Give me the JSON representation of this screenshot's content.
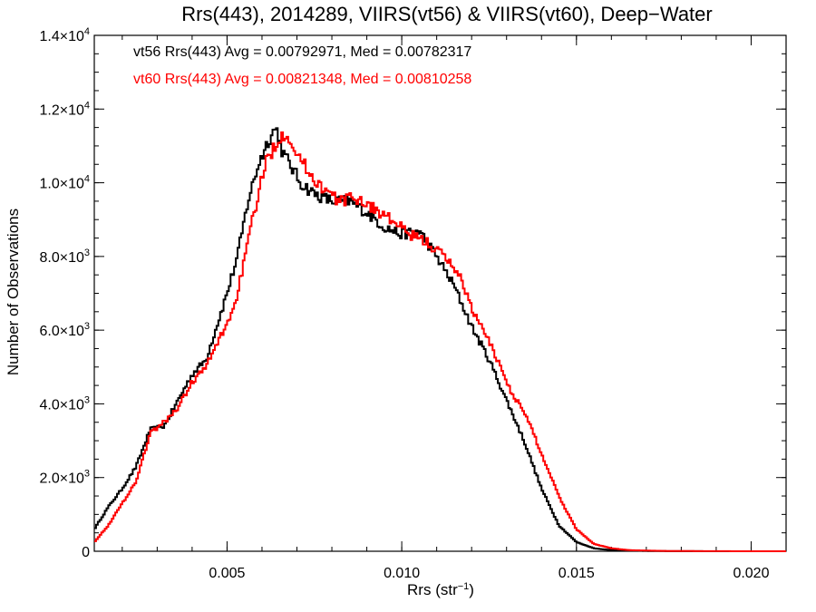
{
  "chart_data": {
    "type": "line",
    "title": "Rrs(443), 2014289, VIIRS(vt56) & VIIRS(vt60), Deep−Water",
    "xlabel": "Rrs (str",
    "xlabel_exponent": "−1",
    "xlabel_suffix": ")",
    "ylabel": "Number of Observations",
    "xlim": [
      0.0012,
      0.021
    ],
    "ylim": [
      0,
      14000
    ],
    "grid": false,
    "legend_position": "top-left",
    "x_ticks": [
      {
        "value": 0.005,
        "label": "0.005"
      },
      {
        "value": 0.01,
        "label": "0.010"
      },
      {
        "value": 0.015,
        "label": "0.015"
      },
      {
        "value": 0.02,
        "label": "0.020"
      }
    ],
    "y_ticks": [
      {
        "value": 0,
        "mantissa": "0",
        "exponent": ""
      },
      {
        "value": 2000,
        "mantissa": "2.0×10",
        "exponent": "3"
      },
      {
        "value": 4000,
        "mantissa": "4.0×10",
        "exponent": "3"
      },
      {
        "value": 6000,
        "mantissa": "6.0×10",
        "exponent": "3"
      },
      {
        "value": 8000,
        "mantissa": "8.0×10",
        "exponent": "3"
      },
      {
        "value": 10000,
        "mantissa": "1.0×10",
        "exponent": "4"
      },
      {
        "value": 12000,
        "mantissa": "1.2×10",
        "exponent": "4"
      },
      {
        "value": 14000,
        "mantissa": "1.4×10",
        "exponent": "4"
      }
    ],
    "annotations": [
      {
        "text": "vt56 Rrs(443) Avg = 0.00792971, Med = 0.00782317",
        "color": "#000000"
      },
      {
        "text": "vt60 Rrs(443) Avg = 0.00821348, Med = 0.00810258",
        "color": "#ff0000"
      }
    ],
    "series": [
      {
        "color": "#000000",
        "points": [
          [
            0.0012,
            600
          ],
          [
            0.0016,
            1200
          ],
          [
            0.002,
            1700
          ],
          [
            0.0024,
            2300
          ],
          [
            0.0028,
            3300
          ],
          [
            0.0032,
            3400
          ],
          [
            0.0036,
            4100
          ],
          [
            0.004,
            4800
          ],
          [
            0.0044,
            5200
          ],
          [
            0.0048,
            6400
          ],
          [
            0.005,
            7000
          ],
          [
            0.0053,
            8000
          ],
          [
            0.0056,
            9500
          ],
          [
            0.0059,
            10500
          ],
          [
            0.0062,
            11200
          ],
          [
            0.0064,
            11500
          ],
          [
            0.0066,
            10800
          ],
          [
            0.0068,
            10500
          ],
          [
            0.0071,
            10000
          ],
          [
            0.0075,
            9700
          ],
          [
            0.008,
            9500
          ],
          [
            0.0085,
            9500
          ],
          [
            0.009,
            9200
          ],
          [
            0.0095,
            8800
          ],
          [
            0.01,
            8600
          ],
          [
            0.0105,
            8700
          ],
          [
            0.011,
            8000
          ],
          [
            0.0115,
            7200
          ],
          [
            0.012,
            6100
          ],
          [
            0.0125,
            5200
          ],
          [
            0.013,
            4100
          ],
          [
            0.0135,
            3000
          ],
          [
            0.014,
            1700
          ],
          [
            0.0145,
            700
          ],
          [
            0.015,
            250
          ],
          [
            0.0155,
            80
          ],
          [
            0.016,
            30
          ],
          [
            0.017,
            8
          ],
          [
            0.018,
            2
          ],
          [
            0.021,
            0
          ]
        ]
      },
      {
        "color": "#ff0000",
        "points": [
          [
            0.0012,
            250
          ],
          [
            0.0016,
            700
          ],
          [
            0.002,
            1300
          ],
          [
            0.0024,
            1900
          ],
          [
            0.0028,
            3200
          ],
          [
            0.0032,
            3500
          ],
          [
            0.0036,
            3900
          ],
          [
            0.004,
            4600
          ],
          [
            0.0044,
            5000
          ],
          [
            0.0048,
            5800
          ],
          [
            0.0052,
            6600
          ],
          [
            0.0055,
            7900
          ],
          [
            0.0058,
            9300
          ],
          [
            0.0061,
            10500
          ],
          [
            0.0064,
            11100
          ],
          [
            0.0067,
            11400
          ],
          [
            0.007,
            10800
          ],
          [
            0.0074,
            10200
          ],
          [
            0.0078,
            9800
          ],
          [
            0.0082,
            9500
          ],
          [
            0.0087,
            9600
          ],
          [
            0.0092,
            9300
          ],
          [
            0.0097,
            9000
          ],
          [
            0.0102,
            8600
          ],
          [
            0.0107,
            8400
          ],
          [
            0.0111,
            8100
          ],
          [
            0.0116,
            7600
          ],
          [
            0.0121,
            6400
          ],
          [
            0.0126,
            5500
          ],
          [
            0.0131,
            4400
          ],
          [
            0.0136,
            3600
          ],
          [
            0.0141,
            2400
          ],
          [
            0.0146,
            1300
          ],
          [
            0.015,
            600
          ],
          [
            0.0155,
            200
          ],
          [
            0.016,
            80
          ],
          [
            0.0165,
            30
          ],
          [
            0.0175,
            8
          ],
          [
            0.019,
            2
          ],
          [
            0.021,
            0
          ]
        ]
      }
    ]
  }
}
